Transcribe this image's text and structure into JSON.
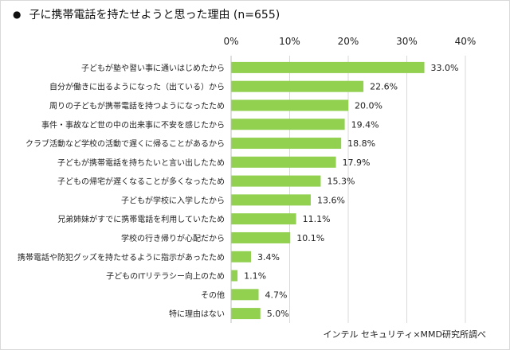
{
  "title": "子に携帯電話を持たせようと思った理由 (n=655)",
  "bullet": "●",
  "source": "インテル セキュリティ×MMD研究所調べ",
  "colors": {
    "bar": "#92d050",
    "grid": "#d9d9d9",
    "text": "#222222"
  },
  "chart_data": {
    "type": "bar",
    "orientation": "horizontal",
    "title": "子に携帯電話を持たせようと思った理由 (n=655)",
    "xlim": [
      0,
      40
    ],
    "xticks": [
      "0%",
      "10%",
      "20%",
      "30%",
      "40%"
    ],
    "xtick_values": [
      0,
      10,
      20,
      30,
      40
    ],
    "grid": true,
    "categories": [
      "子どもが塾や習い事に通いはじめたから",
      "自分が働きに出るようになった（出ている）から",
      "周りの子どもが携帯電話を持つようになったため",
      "事件・事故など世の中の出来事に不安を感じたから",
      "クラブ活動など学校の活動で遅くに帰ることがあるから",
      "子どもが携帯電話を持ちたいと言い出したため",
      "子どもの帰宅が遅くなることが多くなったため",
      "子どもが学校に入学したから",
      "兄弟姉妹がすでに携帯電話を利用していたため",
      "学校の行き帰りが心配だから",
      "携帯電話や防犯グッズを持たせるように指示があったため",
      "子どものITリテラシー向上のため",
      "その他",
      "特に理由はない"
    ],
    "values": [
      33.0,
      22.6,
      20.0,
      19.4,
      18.8,
      17.9,
      15.3,
      13.6,
      11.1,
      10.1,
      3.4,
      1.1,
      4.7,
      5.0
    ],
    "value_labels": [
      "33.0%",
      "22.6%",
      "20.0%",
      "19.4%",
      "18.8%",
      "17.9%",
      "15.3%",
      "13.6%",
      "11.1%",
      "10.1%",
      "3.4%",
      "1.1%",
      "4.7%",
      "5.0%"
    ]
  }
}
